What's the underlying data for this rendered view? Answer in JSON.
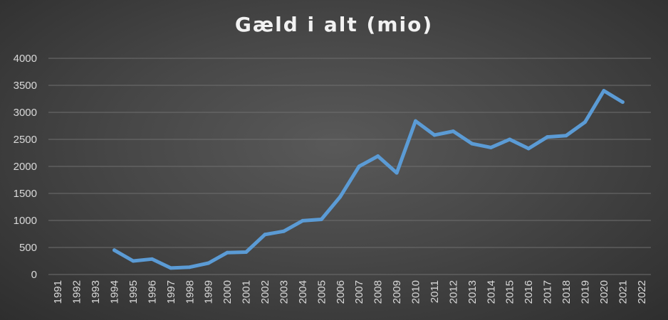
{
  "chart_data": {
    "type": "line",
    "title": "Gæld i alt (mio)",
    "xlabel": "",
    "ylabel": "",
    "ylim": [
      0,
      4000
    ],
    "yticks": [
      "0",
      "500",
      "1000",
      "1500",
      "2000",
      "2500",
      "3000",
      "3500",
      "4000"
    ],
    "categories": [
      "1991",
      "1992",
      "1993",
      "1994",
      "1995",
      "1996",
      "1997",
      "1998",
      "1999",
      "2000",
      "2001",
      "2002",
      "2003",
      "2004",
      "2005",
      "2006",
      "2007",
      "2008",
      "2009",
      "2010",
      "2011",
      "2012",
      "2013",
      "2014",
      "2015",
      "2016",
      "2017",
      "2018",
      "2019",
      "2020",
      "2021",
      "2022"
    ],
    "series": [
      {
        "values": [
          null,
          null,
          null,
          450,
          250,
          285,
          120,
          135,
          210,
          405,
          415,
          740,
          800,
          995,
          1020,
          1440,
          2000,
          2190,
          1880,
          2840,
          2580,
          2650,
          2420,
          2350,
          2500,
          2330,
          2545,
          2570,
          2820,
          3400,
          3190,
          null
        ]
      }
    ],
    "grid": true,
    "legend": "none",
    "colors": {
      "line": "#5b9bd5",
      "grid": "#6e6e6e",
      "text": "#d9d9d9",
      "title": "#f2f2f2"
    }
  }
}
